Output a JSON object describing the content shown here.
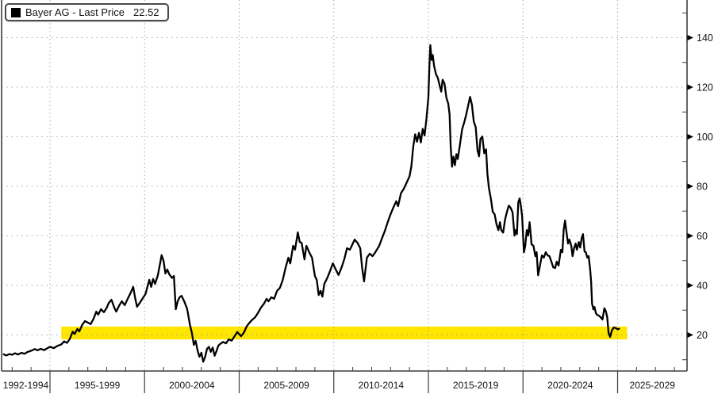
{
  "legend": {
    "label": "Bayer AG - Last Price",
    "value": "22.52",
    "swatch_color": "#000000"
  },
  "colors": {
    "line": "#000000",
    "band": "#ffe600",
    "grid_dots": "#9a9a9a",
    "axis": "#3d3d3d",
    "tick_text": "#141414",
    "background": "#ffffff"
  },
  "y_axis": {
    "side": "right",
    "major_tick_labels": [
      "20",
      "40",
      "60",
      "80",
      "100",
      "120",
      "140"
    ],
    "major_tick_values": [
      20,
      40,
      60,
      80,
      100,
      120,
      140
    ],
    "minor_tick_values": [
      10,
      30,
      50,
      70,
      90,
      110,
      130,
      150
    ]
  },
  "x_axis": {
    "group_labels": [
      "1992-1994",
      "1995-1999",
      "2000-2004",
      "2005-2009",
      "2010-2014",
      "2015-2019",
      "2020-2024",
      "2025-2029"
    ],
    "divider_years": [
      1995,
      2000,
      2005,
      2010,
      2015,
      2020,
      2025
    ],
    "minor_tick_year_start": 1993,
    "minor_tick_year_end": 2028
  },
  "chart_data": {
    "type": "line",
    "title": "Bayer AG - Last Price",
    "last_price": 22.52,
    "grid": "dotted",
    "legend_position": "top-left",
    "xlim": [
      1992.4,
      2029.6
    ],
    "ylim": [
      0,
      150
    ],
    "highlight_band": {
      "x_from": 1995.6,
      "x_to": 2025.5,
      "y_from": 18.2,
      "y_to": 23.4,
      "color": "#ffe600"
    },
    "series": [
      {
        "name": "Bayer AG - Last Price",
        "color": "#000000",
        "points": [
          [
            1992.55,
            12.2
          ],
          [
            1992.7,
            11.7
          ],
          [
            1992.85,
            12.3
          ],
          [
            1993,
            12
          ],
          [
            1993.15,
            12.6
          ],
          [
            1993.3,
            12.1
          ],
          [
            1993.5,
            12.8
          ],
          [
            1993.65,
            12.4
          ],
          [
            1993.8,
            13.1
          ],
          [
            1994,
            13.6
          ],
          [
            1994.2,
            14.3
          ],
          [
            1994.35,
            13.8
          ],
          [
            1994.5,
            14.4
          ],
          [
            1994.7,
            13.9
          ],
          [
            1994.85,
            14.6
          ],
          [
            1995,
            15.2
          ],
          [
            1995.2,
            14.7
          ],
          [
            1995.4,
            15.6
          ],
          [
            1995.6,
            16.2
          ],
          [
            1995.75,
            17.4
          ],
          [
            1995.9,
            16.8
          ],
          [
            1996.05,
            18.4
          ],
          [
            1996.2,
            21.3
          ],
          [
            1996.3,
            20.4
          ],
          [
            1996.45,
            22.4
          ],
          [
            1996.55,
            21.4
          ],
          [
            1996.7,
            24
          ],
          [
            1996.85,
            25.6
          ],
          [
            1997,
            25
          ],
          [
            1997.15,
            24.4
          ],
          [
            1997.3,
            26.5
          ],
          [
            1997.45,
            29.4
          ],
          [
            1997.55,
            28.2
          ],
          [
            1997.7,
            30.4
          ],
          [
            1997.85,
            29.2
          ],
          [
            1998,
            31
          ],
          [
            1998.1,
            32.8
          ],
          [
            1998.25,
            34.2
          ],
          [
            1998.4,
            31
          ],
          [
            1998.5,
            29.4
          ],
          [
            1998.65,
            31.8
          ],
          [
            1998.8,
            33.6
          ],
          [
            1998.95,
            32
          ],
          [
            1999.1,
            34.5
          ],
          [
            1999.25,
            36.8
          ],
          [
            1999.4,
            39.4
          ],
          [
            1999.5,
            35
          ],
          [
            1999.6,
            31.4
          ],
          [
            1999.75,
            33
          ],
          [
            1999.9,
            34.8
          ],
          [
            2000.05,
            36.5
          ],
          [
            2000.15,
            39.4
          ],
          [
            2000.25,
            42.2
          ],
          [
            2000.35,
            39.4
          ],
          [
            2000.45,
            42.6
          ],
          [
            2000.55,
            40.6
          ],
          [
            2000.7,
            44
          ],
          [
            2000.8,
            48
          ],
          [
            2000.9,
            52.2
          ],
          [
            2001,
            50
          ],
          [
            2001.1,
            44.8
          ],
          [
            2001.2,
            46.4
          ],
          [
            2001.3,
            44.5
          ],
          [
            2001.45,
            43
          ],
          [
            2001.55,
            43.8
          ],
          [
            2001.65,
            30.4
          ],
          [
            2001.75,
            33.6
          ],
          [
            2001.85,
            35.2
          ],
          [
            2001.95,
            35.8
          ],
          [
            2002.1,
            33.5
          ],
          [
            2002.25,
            30.5
          ],
          [
            2002.4,
            24
          ],
          [
            2002.5,
            20.8
          ],
          [
            2002.6,
            16
          ],
          [
            2002.7,
            17.6
          ],
          [
            2002.8,
            13.8
          ],
          [
            2002.9,
            11.2
          ],
          [
            2003,
            12.8
          ],
          [
            2003.1,
            9.2
          ],
          [
            2003.2,
            11.2
          ],
          [
            2003.3,
            14.4
          ],
          [
            2003.4,
            15.2
          ],
          [
            2003.5,
            13.2
          ],
          [
            2003.6,
            14.9
          ],
          [
            2003.7,
            11.6
          ],
          [
            2003.8,
            13.5
          ],
          [
            2003.9,
            15.7
          ],
          [
            2004,
            16.4
          ],
          [
            2004.15,
            17.2
          ],
          [
            2004.3,
            16.6
          ],
          [
            2004.45,
            18.2
          ],
          [
            2004.6,
            17.7
          ],
          [
            2004.75,
            19.4
          ],
          [
            2004.9,
            21.2
          ],
          [
            2005.1,
            19.5
          ],
          [
            2005.25,
            21
          ],
          [
            2005.4,
            23.5
          ],
          [
            2005.55,
            25
          ],
          [
            2005.7,
            26.2
          ],
          [
            2005.85,
            27.2
          ],
          [
            2006,
            29
          ],
          [
            2006.15,
            31
          ],
          [
            2006.3,
            32.5
          ],
          [
            2006.45,
            34.6
          ],
          [
            2006.55,
            33.6
          ],
          [
            2006.7,
            35.2
          ],
          [
            2006.85,
            34.6
          ],
          [
            2007,
            37.8
          ],
          [
            2007.15,
            39
          ],
          [
            2007.3,
            42.2
          ],
          [
            2007.45,
            47
          ],
          [
            2007.6,
            51.2
          ],
          [
            2007.7,
            48.9
          ],
          [
            2007.85,
            56
          ],
          [
            2007.95,
            54.4
          ],
          [
            2008.1,
            61.4
          ],
          [
            2008.2,
            57.5
          ],
          [
            2008.3,
            57.2
          ],
          [
            2008.45,
            50.5
          ],
          [
            2008.55,
            56
          ],
          [
            2008.7,
            53.4
          ],
          [
            2008.85,
            51.2
          ],
          [
            2009,
            43.8
          ],
          [
            2009.1,
            42.2
          ],
          [
            2009.2,
            36.1
          ],
          [
            2009.3,
            37.8
          ],
          [
            2009.4,
            35.5
          ],
          [
            2009.5,
            40.6
          ],
          [
            2009.65,
            42.9
          ],
          [
            2009.8,
            45.8
          ],
          [
            2009.95,
            48.9
          ],
          [
            2010.1,
            46.5
          ],
          [
            2010.25,
            44.2
          ],
          [
            2010.4,
            47
          ],
          [
            2010.55,
            50.5
          ],
          [
            2010.7,
            55
          ],
          [
            2010.85,
            54.4
          ],
          [
            2010.95,
            56
          ],
          [
            2011.1,
            58.5
          ],
          [
            2011.25,
            57.2
          ],
          [
            2011.4,
            55
          ],
          [
            2011.5,
            47
          ],
          [
            2011.6,
            41.6
          ],
          [
            2011.75,
            51.2
          ],
          [
            2011.9,
            52.8
          ],
          [
            2012.05,
            51.8
          ],
          [
            2012.2,
            53.4
          ],
          [
            2012.4,
            56
          ],
          [
            2012.55,
            59.1
          ],
          [
            2012.7,
            62
          ],
          [
            2012.85,
            65.5
          ],
          [
            2013,
            68.7
          ],
          [
            2013.15,
            71.5
          ],
          [
            2013.3,
            74
          ],
          [
            2013.4,
            72
          ],
          [
            2013.55,
            77.2
          ],
          [
            2013.7,
            79
          ],
          [
            2013.85,
            81.5
          ],
          [
            2014,
            84
          ],
          [
            2014.1,
            88
          ],
          [
            2014.2,
            96
          ],
          [
            2014.3,
            101
          ],
          [
            2014.4,
            98
          ],
          [
            2014.5,
            101.6
          ],
          [
            2014.6,
            97.7
          ],
          [
            2014.7,
            103.2
          ],
          [
            2014.8,
            100.5
          ],
          [
            2014.9,
            107.5
          ],
          [
            2015,
            116
          ],
          [
            2015.05,
            128
          ],
          [
            2015.1,
            137
          ],
          [
            2015.17,
            131
          ],
          [
            2015.23,
            133
          ],
          [
            2015.3,
            128.5
          ],
          [
            2015.4,
            125.3
          ],
          [
            2015.5,
            123.7
          ],
          [
            2015.6,
            120.5
          ],
          [
            2015.68,
            118.2
          ],
          [
            2015.75,
            123
          ],
          [
            2015.85,
            121.4
          ],
          [
            2015.95,
            115.7
          ],
          [
            2016.05,
            113.4
          ],
          [
            2016.12,
            109
          ],
          [
            2016.18,
            96
          ],
          [
            2016.25,
            87.9
          ],
          [
            2016.32,
            92
          ],
          [
            2016.4,
            88.5
          ],
          [
            2016.48,
            93
          ],
          [
            2016.55,
            91
          ],
          [
            2016.65,
            96
          ],
          [
            2016.78,
            103
          ],
          [
            2016.9,
            106
          ],
          [
            2017,
            109
          ],
          [
            2017.1,
            112.5
          ],
          [
            2017.2,
            116.1
          ],
          [
            2017.3,
            112.9
          ],
          [
            2017.4,
            106.1
          ],
          [
            2017.5,
            103.9
          ],
          [
            2017.6,
            94.3
          ],
          [
            2017.68,
            92.1
          ],
          [
            2017.75,
            99.1
          ],
          [
            2017.85,
            100.1
          ],
          [
            2017.95,
            93.3
          ],
          [
            2018.05,
            94.9
          ],
          [
            2018.12,
            85
          ],
          [
            2018.2,
            79.3
          ],
          [
            2018.3,
            75.1
          ],
          [
            2018.4,
            69.7
          ],
          [
            2018.5,
            68.7
          ],
          [
            2018.6,
            64.6
          ],
          [
            2018.7,
            62.3
          ],
          [
            2018.78,
            65.5
          ],
          [
            2018.85,
            62.3
          ],
          [
            2018.95,
            61.3
          ],
          [
            2019.05,
            66.5
          ],
          [
            2019.15,
            69.7
          ],
          [
            2019.25,
            72.2
          ],
          [
            2019.35,
            71.3
          ],
          [
            2019.45,
            69.4
          ],
          [
            2019.55,
            60.1
          ],
          [
            2019.62,
            62.3
          ],
          [
            2019.68,
            60.7
          ],
          [
            2019.75,
            73.5
          ],
          [
            2019.82,
            75.1
          ],
          [
            2019.88,
            72.5
          ],
          [
            2019.95,
            68.1
          ],
          [
            2020.05,
            53.4
          ],
          [
            2020.12,
            56
          ],
          [
            2020.2,
            62.3
          ],
          [
            2020.27,
            60.1
          ],
          [
            2020.35,
            65.5
          ],
          [
            2020.45,
            56.6
          ],
          [
            2020.55,
            56
          ],
          [
            2020.65,
            51.8
          ],
          [
            2020.72,
            53.4
          ],
          [
            2020.8,
            44.1
          ],
          [
            2020.88,
            47.3
          ],
          [
            2021,
            52.1
          ],
          [
            2021.1,
            51.2
          ],
          [
            2021.2,
            53.4
          ],
          [
            2021.3,
            52.1
          ],
          [
            2021.4,
            51.8
          ],
          [
            2021.5,
            49.6
          ],
          [
            2021.6,
            47.3
          ],
          [
            2021.7,
            47
          ],
          [
            2021.78,
            49.6
          ],
          [
            2021.88,
            48
          ],
          [
            2022,
            54.4
          ],
          [
            2022.08,
            53.4
          ],
          [
            2022.15,
            62.3
          ],
          [
            2022.22,
            66.2
          ],
          [
            2022.3,
            61.4
          ],
          [
            2022.38,
            56.9
          ],
          [
            2022.45,
            58.5
          ],
          [
            2022.55,
            56
          ],
          [
            2022.62,
            51.8
          ],
          [
            2022.7,
            55
          ],
          [
            2022.78,
            56.9
          ],
          [
            2022.85,
            54.4
          ],
          [
            2022.95,
            57.5
          ],
          [
            2023.02,
            55.3
          ],
          [
            2023.1,
            59.1
          ],
          [
            2023.17,
            60.7
          ],
          [
            2023.25,
            53.7
          ],
          [
            2023.32,
            53.4
          ],
          [
            2023.4,
            51.2
          ],
          [
            2023.47,
            51.8
          ],
          [
            2023.55,
            46.4
          ],
          [
            2023.6,
            41.6
          ],
          [
            2023.65,
            32.6
          ],
          [
            2023.72,
            30.3
          ],
          [
            2023.78,
            31.3
          ],
          [
            2023.85,
            28.8
          ],
          [
            2023.92,
            28.1
          ],
          [
            2024,
            27.8
          ],
          [
            2024.1,
            27.2
          ],
          [
            2024.2,
            26.2
          ],
          [
            2024.3,
            30.8
          ],
          [
            2024.38,
            29.5
          ],
          [
            2024.45,
            27.2
          ],
          [
            2024.52,
            20.8
          ],
          [
            2024.6,
            19.2
          ],
          [
            2024.7,
            21.8
          ],
          [
            2024.8,
            23
          ],
          [
            2024.9,
            22.8
          ],
          [
            2025,
            22.3
          ],
          [
            2025.08,
            22.5
          ]
        ]
      }
    ]
  }
}
